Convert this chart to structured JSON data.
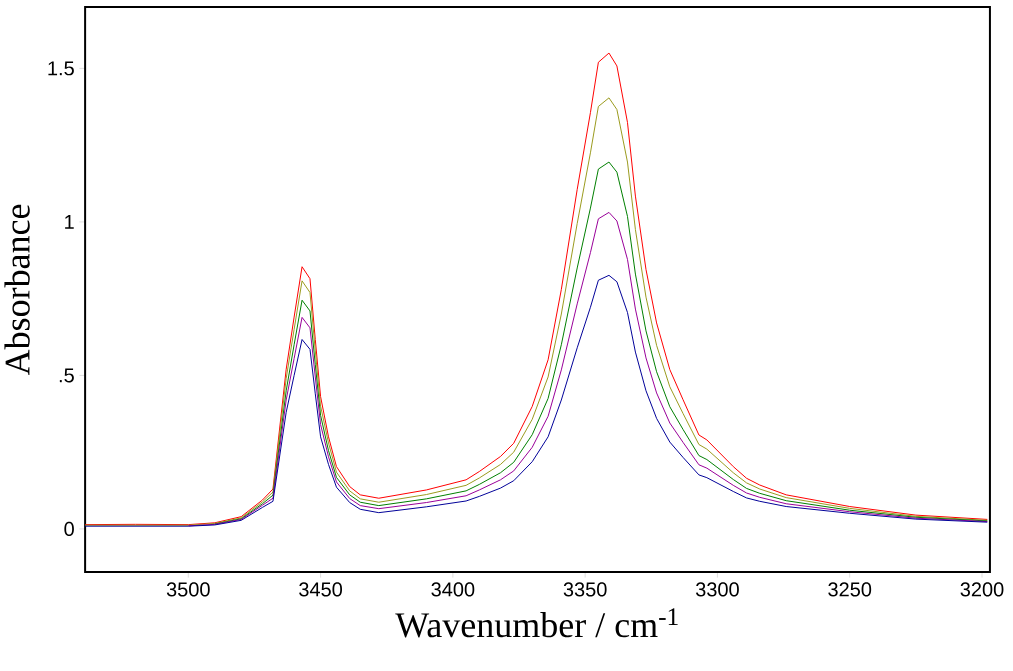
{
  "chart_data": {
    "type": "line",
    "xlabel": "Wavenumber / cm$^{-1}$",
    "ylabel": "Absorbance",
    "x": [
      3539,
      3520,
      3500,
      3490,
      3480,
      3472,
      3468,
      3463,
      3460,
      3457,
      3454,
      3452,
      3450,
      3447,
      3444,
      3439,
      3435,
      3428,
      3410,
      3395,
      3390,
      3382,
      3377,
      3370,
      3364,
      3359,
      3353,
      3348,
      3345,
      3341,
      3338,
      3334,
      3331,
      3327,
      3323,
      3318,
      3313,
      3307,
      3304,
      3294,
      3289,
      3284,
      3274,
      3250,
      3225,
      3198
    ],
    "series": [
      {
        "color": "#ff0000",
        "values": [
          0.014,
          0.015,
          0.014,
          0.02,
          0.04,
          0.094,
          0.13,
          0.52,
          0.69,
          0.854,
          0.815,
          0.617,
          0.431,
          0.3,
          0.203,
          0.138,
          0.111,
          0.1,
          0.127,
          0.16,
          0.187,
          0.236,
          0.279,
          0.399,
          0.551,
          0.78,
          1.106,
          1.356,
          1.52,
          1.55,
          1.508,
          1.324,
          1.084,
          0.845,
          0.671,
          0.519,
          0.421,
          0.306,
          0.29,
          0.203,
          0.165,
          0.143,
          0.111,
          0.073,
          0.045,
          0.031
        ]
      },
      {
        "color": "#9b9b1e",
        "values": [
          0.012,
          0.012,
          0.012,
          0.018,
          0.036,
          0.088,
          0.12,
          0.49,
          0.65,
          0.808,
          0.77,
          0.58,
          0.4,
          0.28,
          0.185,
          0.124,
          0.098,
          0.087,
          0.112,
          0.142,
          0.166,
          0.21,
          0.25,
          0.357,
          0.495,
          0.7,
          0.995,
          1.225,
          1.376,
          1.404,
          1.366,
          1.195,
          0.975,
          0.755,
          0.598,
          0.463,
          0.376,
          0.275,
          0.26,
          0.183,
          0.15,
          0.13,
          0.102,
          0.067,
          0.041,
          0.028
        ]
      },
      {
        "color": "#008000",
        "values": [
          null,
          null,
          null,
          0.016,
          0.033,
          0.082,
          0.11,
          0.45,
          0.6,
          0.745,
          0.71,
          0.535,
          0.37,
          0.255,
          0.168,
          0.111,
          0.087,
          0.076,
          0.098,
          0.124,
          0.145,
          0.183,
          0.217,
          0.307,
          0.425,
          0.6,
          0.85,
          1.045,
          1.172,
          1.195,
          1.162,
          1.018,
          0.83,
          0.645,
          0.512,
          0.398,
          0.324,
          0.239,
          0.226,
          0.161,
          0.132,
          0.116,
          0.092,
          0.061,
          0.038,
          0.026
        ]
      },
      {
        "color": "#990099",
        "values": [
          null,
          null,
          0.01,
          0.015,
          0.031,
          0.077,
          0.1,
          0.42,
          0.555,
          0.689,
          0.655,
          0.495,
          0.34,
          0.235,
          0.153,
          0.099,
          0.076,
          0.066,
          0.086,
          0.108,
          0.127,
          0.16,
          0.189,
          0.266,
          0.367,
          0.518,
          0.733,
          0.9,
          1.01,
          1.031,
          1.003,
          0.878,
          0.716,
          0.557,
          0.443,
          0.345,
          0.282,
          0.209,
          0.198,
          0.142,
          0.117,
          0.103,
          0.082,
          0.056,
          0.035,
          0.024
        ]
      },
      {
        "color": "#000099",
        "values": [
          0.009,
          0.009,
          0.009,
          0.013,
          0.028,
          0.07,
          0.09,
          0.38,
          0.5,
          0.617,
          0.585,
          0.44,
          0.3,
          0.21,
          0.136,
          0.086,
          0.064,
          0.053,
          0.072,
          0.091,
          0.106,
          0.133,
          0.157,
          0.219,
          0.3,
          0.42,
          0.59,
          0.722,
          0.81,
          0.826,
          0.805,
          0.705,
          0.576,
          0.45,
          0.36,
          0.283,
          0.233,
          0.176,
          0.167,
          0.122,
          0.101,
          0.09,
          0.073,
          0.051,
          0.032,
          0.022
        ]
      }
    ],
    "xlim": [
      3539,
      3197
    ],
    "ylim": [
      -0.14,
      1.7
    ],
    "xticks": [
      3500,
      3450,
      3400,
      3350,
      3300,
      3250,
      3200
    ],
    "yticks": [
      0,
      {
        "value": 0.5,
        "label": ".5"
      },
      1,
      1.5
    ],
    "grid": false
  }
}
